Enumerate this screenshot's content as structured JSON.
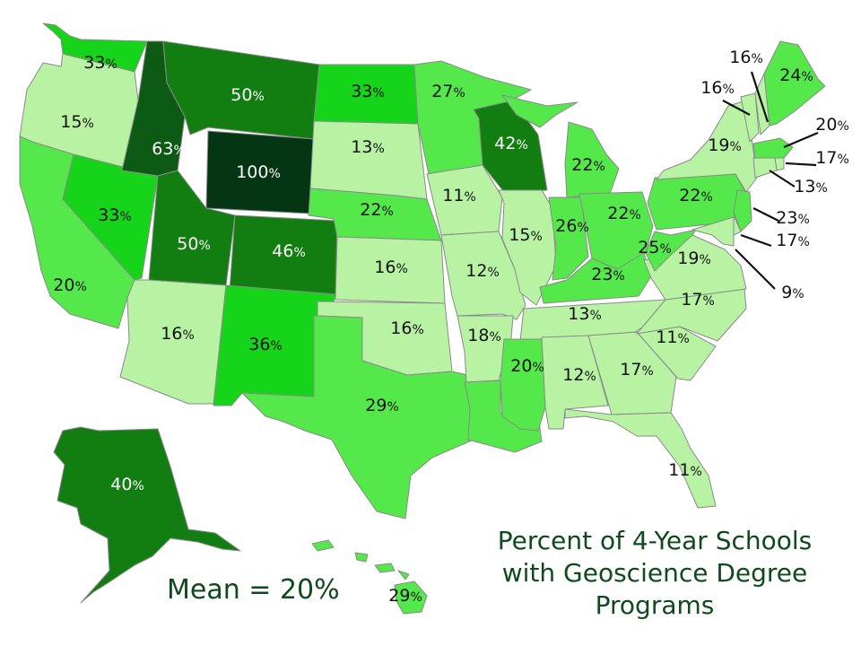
{
  "title_lines": [
    "Percent of 4-Year Schools",
    "with Geoscience Degree",
    "Programs"
  ],
  "mean_label": "Mean = 20%",
  "percent_sign": "%",
  "colors": {
    "light": "#b8f3a4",
    "medium": "#54e84a",
    "bright": "#16d41a",
    "dark": "#127e12",
    "darker": "#0c5a14",
    "darkest": "#053614",
    "title": "#0e4a1c"
  },
  "states": [
    {
      "id": "WA",
      "value": "33"
    },
    {
      "id": "OR",
      "value": "15"
    },
    {
      "id": "CA",
      "value": "20"
    },
    {
      "id": "NV",
      "value": "33"
    },
    {
      "id": "ID",
      "value": "63"
    },
    {
      "id": "MT",
      "value": "50"
    },
    {
      "id": "WY",
      "value": "100"
    },
    {
      "id": "UT",
      "value": "50"
    },
    {
      "id": "AZ",
      "value": "16"
    },
    {
      "id": "CO",
      "value": "46"
    },
    {
      "id": "NM",
      "value": "36"
    },
    {
      "id": "ND",
      "value": "33"
    },
    {
      "id": "SD",
      "value": "13"
    },
    {
      "id": "NE",
      "value": "22"
    },
    {
      "id": "KS",
      "value": "16"
    },
    {
      "id": "OK",
      "value": "16"
    },
    {
      "id": "TX",
      "value": "29"
    },
    {
      "id": "MN",
      "value": "27"
    },
    {
      "id": "IA",
      "value": "11"
    },
    {
      "id": "MO",
      "value": "12"
    },
    {
      "id": "AR",
      "value": "18"
    },
    {
      "id": "LA",
      "value": ""
    },
    {
      "id": "WI",
      "value": "42"
    },
    {
      "id": "IL",
      "value": "15"
    },
    {
      "id": "MI",
      "value": "22"
    },
    {
      "id": "IN",
      "value": "26"
    },
    {
      "id": "OH",
      "value": "22"
    },
    {
      "id": "KY",
      "value": "23"
    },
    {
      "id": "TN",
      "value": "13"
    },
    {
      "id": "MS",
      "value": "20"
    },
    {
      "id": "AL",
      "value": "12"
    },
    {
      "id": "GA",
      "value": "17"
    },
    {
      "id": "FL",
      "value": "11"
    },
    {
      "id": "SC",
      "value": "11"
    },
    {
      "id": "NC",
      "value": "17"
    },
    {
      "id": "VA",
      "value": "19"
    },
    {
      "id": "WV",
      "value": "25"
    },
    {
      "id": "PA",
      "value": "22"
    },
    {
      "id": "NY",
      "value": "19"
    },
    {
      "id": "VT",
      "value": "16"
    },
    {
      "id": "NH",
      "value": "16"
    },
    {
      "id": "ME",
      "value": "24"
    },
    {
      "id": "MA",
      "value": "20"
    },
    {
      "id": "RI",
      "value": "17"
    },
    {
      "id": "CT",
      "value": "13"
    },
    {
      "id": "NJ",
      "value": "23"
    },
    {
      "id": "DE",
      "value": "17"
    },
    {
      "id": "MD",
      "value": "9"
    },
    {
      "id": "AK",
      "value": "40"
    },
    {
      "id": "HI",
      "value": "29"
    }
  ]
}
